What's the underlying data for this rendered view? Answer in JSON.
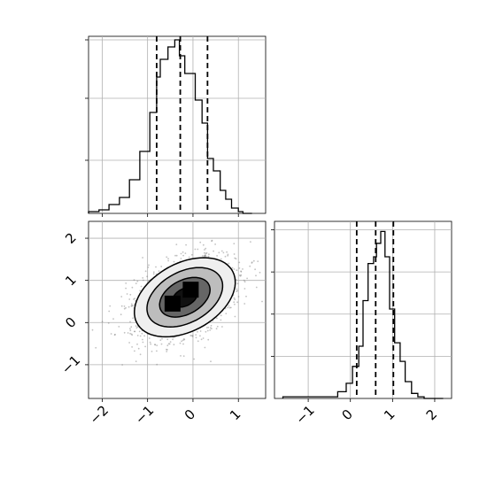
{
  "chart_data": {
    "type": "corner",
    "grid": true,
    "panels": [
      {
        "id": "hist_x",
        "type": "histogram-step",
        "x_range": [
          -2.3,
          1.6
        ],
        "bin_edges": [
          -2.3,
          -2.07,
          -1.85,
          -1.62,
          -1.4,
          -1.17,
          -0.95,
          -0.8,
          -0.72,
          -0.55,
          -0.4,
          -0.3,
          -0.18,
          -0.05,
          0.05,
          0.2,
          0.32,
          0.45,
          0.6,
          0.72,
          0.85,
          1.0,
          1.1,
          1.3
        ],
        "counts": [
          0.01,
          0.02,
          0.05,
          0.09,
          0.19,
          0.35,
          0.57,
          0.77,
          0.87,
          0.94,
          0.98,
          0.89,
          0.79,
          0.79,
          0.64,
          0.51,
          0.31,
          0.24,
          0.13,
          0.08,
          0.03,
          0.01,
          0.0
        ],
        "quantiles": [
          -0.8,
          -0.28,
          0.32
        ],
        "x_ticks": [
          -2,
          -1,
          0,
          1
        ],
        "y_ticks": [
          0.3,
          0.65,
          0.98
        ],
        "y_range": [
          0,
          1.0
        ]
      },
      {
        "id": "hist_y",
        "type": "histogram-step",
        "x_range": [
          -1.8,
          2.4
        ],
        "bin_edges": [
          -1.6,
          -0.3,
          -0.1,
          0.05,
          0.2,
          0.3,
          0.42,
          0.55,
          0.62,
          0.72,
          0.82,
          0.93,
          1.05,
          1.18,
          1.3,
          1.45,
          1.6,
          1.75,
          1.9,
          2.05,
          2.2
        ],
        "counts": [
          0.01,
          0.04,
          0.09,
          0.19,
          0.31,
          0.58,
          0.8,
          0.84,
          0.92,
          0.99,
          0.84,
          0.53,
          0.33,
          0.22,
          0.1,
          0.03,
          0.01,
          0.0,
          0.0,
          0.0
        ],
        "quantiles": [
          0.15,
          0.6,
          1.02
        ],
        "x_ticks": [
          -1,
          0,
          1,
          2
        ],
        "y_ticks": [
          0.25,
          0.5,
          0.75,
          1.0
        ],
        "y_range": [
          0,
          1.05
        ]
      },
      {
        "id": "joint",
        "type": "2d-density-contour",
        "x_range": [
          -2.3,
          1.6
        ],
        "y_range": [
          -1.8,
          2.4
        ],
        "x_ticks": [
          -2,
          -1,
          0,
          1
        ],
        "y_ticks": [
          -1,
          0,
          1,
          2
        ],
        "mean": [
          -0.18,
          0.6
        ],
        "covariance": [
          [
            0.28,
            0.09
          ],
          [
            0.09,
            0.2
          ]
        ],
        "contour_levels_sigma": [
          0.5,
          1.0,
          1.5,
          2.0
        ],
        "fill_grays": [
          "#111111",
          "#666666",
          "#bdbdbd",
          "#efefef"
        ],
        "peak_points": [
          [
            -0.45,
            0.45
          ],
          [
            -0.05,
            0.78
          ]
        ]
      }
    ]
  }
}
